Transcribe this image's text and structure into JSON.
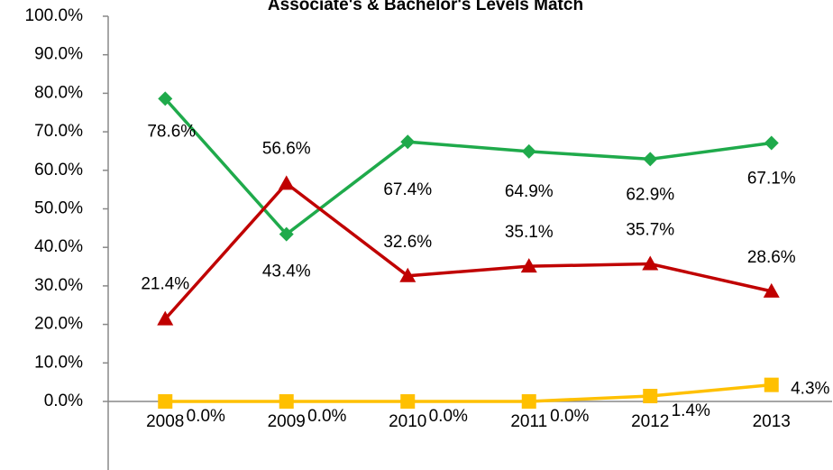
{
  "chart_data": {
    "type": "line",
    "title": "Associate's & Bachelor's Levels Match",
    "categories": [
      "2008",
      "2009",
      "2010",
      "2011",
      "2012",
      "2013"
    ],
    "series": [
      {
        "color": "#1faa4b",
        "marker": "diamond",
        "values": [
          78.6,
          43.4,
          67.4,
          64.9,
          62.9,
          67.1
        ],
        "value_labels": [
          "78.6%",
          "43.4%",
          "67.4%",
          "64.9%",
          "62.9%",
          "67.1%"
        ]
      },
      {
        "color": "#c00000",
        "marker": "triangle",
        "values": [
          21.4,
          56.6,
          32.6,
          35.1,
          35.7,
          28.6
        ],
        "value_labels": [
          "21.4%",
          "56.6%",
          "32.6%",
          "35.1%",
          "35.7%",
          "28.6%"
        ]
      },
      {
        "color": "#ffc000",
        "marker": "square",
        "values": [
          0.0,
          0.0,
          0.0,
          0.0,
          1.4,
          4.3
        ],
        "value_labels": [
          "0.0%",
          "0.0%",
          "0.0%",
          "0.0%",
          "1.4%",
          "4.3%"
        ]
      }
    ],
    "ylim": [
      0,
      100
    ],
    "yticks": [
      {
        "value": 0,
        "label": "0.0%"
      },
      {
        "value": 10,
        "label": "10.0%"
      },
      {
        "value": 20,
        "label": "20.0%"
      },
      {
        "value": 30,
        "label": "30.0%"
      },
      {
        "value": 40,
        "label": "40.0%"
      },
      {
        "value": 50,
        "label": "50.0%"
      },
      {
        "value": 60,
        "label": "60.0%"
      },
      {
        "value": 70,
        "label": "70.0%"
      },
      {
        "value": 80,
        "label": "80.0%"
      },
      {
        "value": 90,
        "label": "90.0%"
      },
      {
        "value": 100,
        "label": "100.0%"
      }
    ],
    "grid": false
  }
}
